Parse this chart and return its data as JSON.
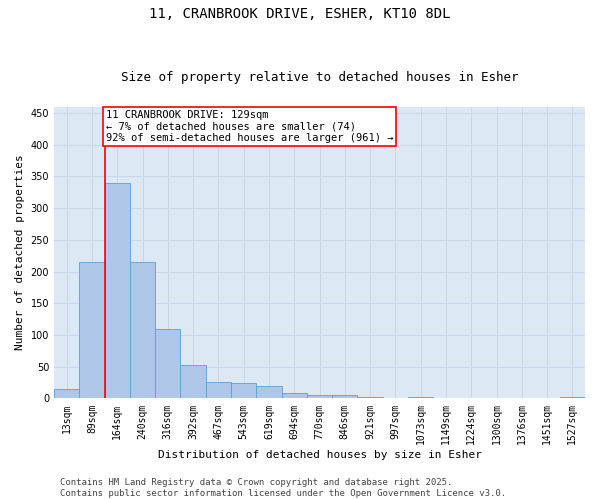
{
  "title_line1": "11, CRANBROOK DRIVE, ESHER, KT10 8DL",
  "title_line2": "Size of property relative to detached houses in Esher",
  "xlabel": "Distribution of detached houses by size in Esher",
  "ylabel": "Number of detached properties",
  "categories": [
    "13sqm",
    "89sqm",
    "164sqm",
    "240sqm",
    "316sqm",
    "392sqm",
    "467sqm",
    "543sqm",
    "619sqm",
    "694sqm",
    "770sqm",
    "846sqm",
    "921sqm",
    "997sqm",
    "1073sqm",
    "1149sqm",
    "1224sqm",
    "1300sqm",
    "1376sqm",
    "1451sqm",
    "1527sqm"
  ],
  "values": [
    15,
    215,
    340,
    215,
    110,
    53,
    26,
    25,
    19,
    9,
    5,
    5,
    2,
    1,
    2,
    0,
    1,
    0,
    0,
    0,
    3
  ],
  "bar_color": "#aec6e8",
  "bar_edge_color": "#5a9fd4",
  "grid_color": "#c8d8ea",
  "background_color": "#dce8f4",
  "vline_color": "red",
  "annotation_line1": "11 CRANBROOK DRIVE: 129sqm",
  "annotation_line2": "← 7% of detached houses are smaller (74)",
  "annotation_line3": "92% of semi-detached houses are larger (961) →",
  "annotation_box_color": "white",
  "annotation_box_edge": "red",
  "ylim": [
    0,
    460
  ],
  "yticks": [
    0,
    50,
    100,
    150,
    200,
    250,
    300,
    350,
    400,
    450
  ],
  "footer_text": "Contains HM Land Registry data © Crown copyright and database right 2025.\nContains public sector information licensed under the Open Government Licence v3.0.",
  "title_fontsize": 10,
  "subtitle_fontsize": 9,
  "axis_label_fontsize": 8,
  "tick_fontsize": 7,
  "annotation_fontsize": 7.5,
  "footer_fontsize": 6.5
}
